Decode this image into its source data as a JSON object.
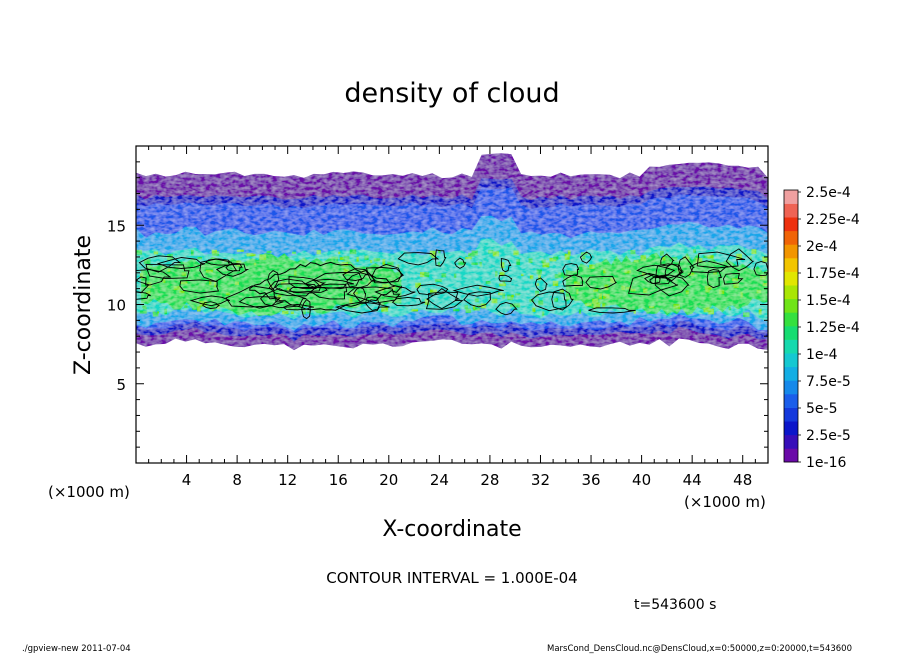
{
  "chart_data": {
    "type": "heatmap",
    "title": "density of cloud",
    "xlabel": "X-coordinate",
    "ylabel": "Z-coordinate",
    "x_unit_left": "(×1000 m)",
    "x_unit_right": "(×1000 m)",
    "xlim": [
      0,
      50
    ],
    "ylim": [
      0,
      20
    ],
    "x_ticks": [
      4,
      8,
      12,
      16,
      20,
      24,
      28,
      32,
      36,
      40,
      44,
      48
    ],
    "x_tick_labels": [
      "4",
      "8",
      "12",
      "16",
      "20",
      "24",
      "28",
      "32",
      "36",
      "40",
      "44",
      "48"
    ],
    "y_ticks": [
      5,
      10,
      15
    ],
    "y_tick_labels": [
      "5",
      "10",
      "15"
    ],
    "colorbar": {
      "labels": [
        "1e-16",
        "2.5e-5",
        "5e-5",
        "7.5e-5",
        "1e-4",
        "1.25e-4",
        "1.5e-4",
        "1.75e-4",
        "2e-4",
        "2.25e-4",
        "2.5e-4"
      ],
      "colors": [
        "#6a0aa8",
        "#0a12c8",
        "#1c56ea",
        "#13a6ea",
        "#16d8c6",
        "#18de52",
        "#88e608",
        "#f2e600",
        "#f28c00",
        "#ee2c10",
        "#f0a0a0"
      ],
      "levels": 20
    },
    "cloud_layer": {
      "bottom_km": [
        7.2,
        8.0
      ],
      "top_km": [
        18.0,
        19.5
      ],
      "peak_band_km": [
        9.5,
        13.0
      ],
      "max_density": 0.00015
    },
    "annotations": {
      "contour_interval": "CONTOUR INTERVAL = 1.000E-04",
      "time": "t=543600 s"
    }
  },
  "footer": {
    "left": "./gpview-new  2011-07-04",
    "right": "MarsCond_DensCloud.nc@DensCloud,x=0:50000,z=0:20000,t=543600"
  }
}
